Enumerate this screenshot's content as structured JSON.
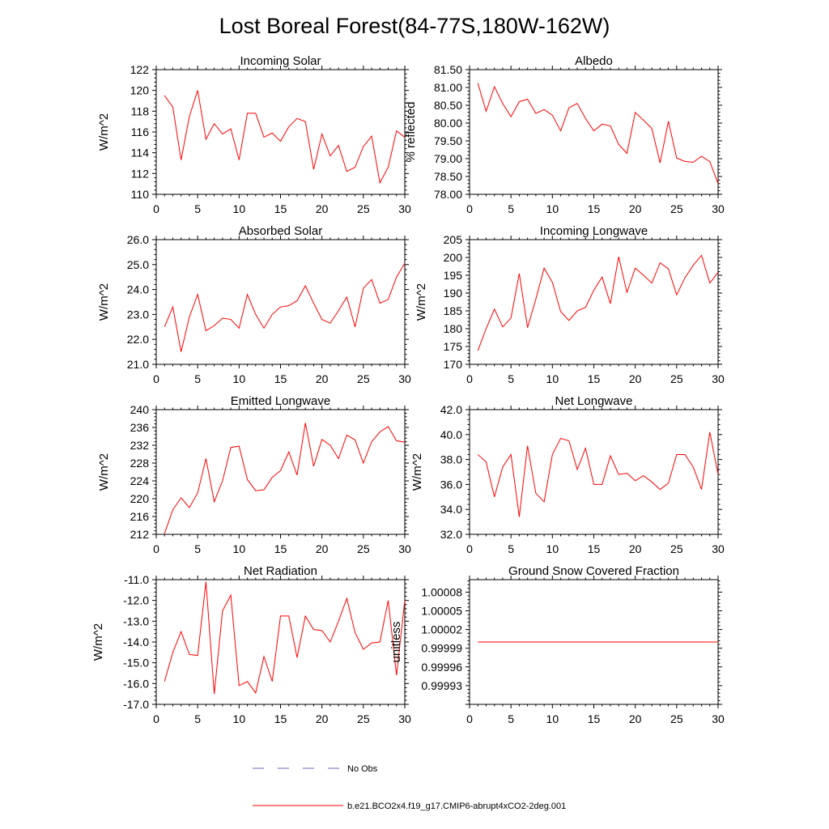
{
  "figure_title": "Lost Boreal Forest(84-77S,180W-162W)",
  "chart_data": [
    {
      "type": "line",
      "title": "Incoming Solar",
      "ylabel": "W/m^2",
      "xlim": [
        0,
        30
      ],
      "ylim": [
        110,
        122
      ],
      "xticks": [
        0,
        5,
        10,
        15,
        20,
        25,
        30
      ],
      "yticks": [
        110,
        112,
        114,
        116,
        118,
        120,
        122
      ],
      "ytick_labels": [
        "110",
        "112",
        "114",
        "116",
        "118",
        "120",
        "122"
      ],
      "series": [
        {
          "name": "b.e21.BCO2x4.f19_g17.CMIP6-abrupt4xCO2-2deg.001",
          "color": "#ff0000",
          "x": [
            1,
            2,
            3,
            4,
            5,
            6,
            7,
            8,
            9,
            10,
            11,
            12,
            13,
            14,
            15,
            16,
            17,
            18,
            19,
            20,
            21,
            22,
            23,
            24,
            25,
            26,
            27,
            28,
            29,
            30
          ],
          "values": [
            119.5,
            118.4,
            113.3,
            117.5,
            120.0,
            115.3,
            116.8,
            115.8,
            116.3,
            113.3,
            117.8,
            117.8,
            115.5,
            115.9,
            115.1,
            116.5,
            117.3,
            117.0,
            112.4,
            115.8,
            113.7,
            114.7,
            112.2,
            112.6,
            114.6,
            115.6,
            111.1,
            112.6,
            116.1,
            115.5
          ]
        }
      ]
    },
    {
      "type": "line",
      "title": "Albedo",
      "ylabel": "% reflected",
      "xlim": [
        0,
        30
      ],
      "ylim": [
        78.0,
        81.5
      ],
      "xticks": [
        0,
        5,
        10,
        15,
        20,
        25,
        30
      ],
      "yticks": [
        78.0,
        78.5,
        79.0,
        79.5,
        80.0,
        80.5,
        81.0,
        81.5
      ],
      "ytick_labels": [
        "78.00",
        "78.50",
        "79.00",
        "79.50",
        "80.00",
        "80.50",
        "81.00",
        "81.50"
      ],
      "series": [
        {
          "name": "b.e21.BCO2x4.f19_g17.CMIP6-abrupt4xCO2-2deg.001",
          "color": "#ff0000",
          "x": [
            1,
            2,
            3,
            4,
            5,
            6,
            7,
            8,
            9,
            10,
            11,
            12,
            13,
            14,
            15,
            16,
            17,
            18,
            19,
            20,
            21,
            22,
            23,
            24,
            25,
            26,
            27,
            28,
            29,
            30
          ],
          "values": [
            81.12,
            80.33,
            81.02,
            80.55,
            80.18,
            80.6,
            80.67,
            80.27,
            80.38,
            80.22,
            79.78,
            80.43,
            80.55,
            80.13,
            79.78,
            79.97,
            79.92,
            79.4,
            79.15,
            80.3,
            80.08,
            79.85,
            78.88,
            80.05,
            79.02,
            78.92,
            78.9,
            79.07,
            78.92,
            78.3
          ]
        }
      ]
    },
    {
      "type": "line",
      "title": "Absorbed Solar",
      "ylabel": "W/m^2",
      "xlim": [
        0,
        30
      ],
      "ylim": [
        21.0,
        26.0
      ],
      "xticks": [
        0,
        5,
        10,
        15,
        20,
        25,
        30
      ],
      "yticks": [
        21.0,
        22.0,
        23.0,
        24.0,
        25.0,
        26.0
      ],
      "ytick_labels": [
        "21.0",
        "22.0",
        "23.0",
        "24.0",
        "25.0",
        "26.0"
      ],
      "series": [
        {
          "name": "b.e21.BCO2x4.f19_g17.CMIP6-abrupt4xCO2-2deg.001",
          "color": "#ff0000",
          "x": [
            1,
            2,
            3,
            4,
            5,
            6,
            7,
            8,
            9,
            10,
            11,
            12,
            13,
            14,
            15,
            16,
            17,
            18,
            19,
            20,
            21,
            22,
            23,
            24,
            25,
            26,
            27,
            28,
            29,
            30
          ],
          "values": [
            22.5,
            23.3,
            21.5,
            22.9,
            23.8,
            22.35,
            22.55,
            22.85,
            22.8,
            22.45,
            23.8,
            23.0,
            22.45,
            23.0,
            23.3,
            23.35,
            23.55,
            24.15,
            23.45,
            22.8,
            22.65,
            23.15,
            23.7,
            22.5,
            24.05,
            24.4,
            23.45,
            23.6,
            24.5,
            25.05
          ]
        }
      ]
    },
    {
      "type": "line",
      "title": "Incoming Longwave",
      "ylabel": "W/m^2",
      "xlim": [
        0,
        30
      ],
      "ylim": [
        170,
        205
      ],
      "xticks": [
        0,
        5,
        10,
        15,
        20,
        25,
        30
      ],
      "yticks": [
        170,
        175,
        180,
        185,
        190,
        195,
        200,
        205
      ],
      "ytick_labels": [
        "170",
        "175",
        "180",
        "185",
        "190",
        "195",
        "200",
        "205"
      ],
      "series": [
        {
          "name": "b.e21.BCO2x4.f19_g17.CMIP6-abrupt4xCO2-2deg.001",
          "color": "#ff0000",
          "x": [
            1,
            2,
            3,
            4,
            5,
            6,
            7,
            8,
            9,
            10,
            11,
            12,
            13,
            14,
            15,
            16,
            17,
            18,
            19,
            20,
            21,
            22,
            23,
            24,
            25,
            26,
            27,
            28,
            29,
            30
          ],
          "values": [
            173.8,
            180.0,
            185.5,
            180.5,
            183.0,
            195.5,
            180.3,
            188.3,
            197.0,
            193.0,
            184.8,
            182.3,
            185.0,
            186.0,
            190.8,
            194.5,
            187.0,
            200.2,
            190.2,
            197.0,
            195.0,
            192.8,
            198.5,
            196.8,
            189.5,
            194.3,
            197.8,
            200.6,
            192.8,
            195.8
          ]
        }
      ]
    },
    {
      "type": "line",
      "title": "Emitted Longwave",
      "ylabel": "W/m^2",
      "xlim": [
        0,
        30
      ],
      "ylim": [
        212,
        240
      ],
      "xticks": [
        0,
        5,
        10,
        15,
        20,
        25,
        30
      ],
      "yticks": [
        212,
        216,
        220,
        224,
        228,
        232,
        236,
        240
      ],
      "ytick_labels": [
        "212",
        "216",
        "220",
        "224",
        "228",
        "232",
        "236",
        "240"
      ],
      "series": [
        {
          "name": "b.e21.BCO2x4.f19_g17.CMIP6-abrupt4xCO2-2deg.001",
          "color": "#ff0000",
          "x": [
            1,
            2,
            3,
            4,
            5,
            6,
            7,
            8,
            9,
            10,
            11,
            12,
            13,
            14,
            15,
            16,
            17,
            18,
            19,
            20,
            21,
            22,
            23,
            24,
            25,
            26,
            27,
            28,
            29,
            30
          ],
          "values": [
            212.2,
            217.5,
            220.2,
            218.0,
            221.3,
            229.0,
            219.3,
            224.0,
            231.5,
            231.8,
            224.3,
            221.8,
            222.0,
            224.8,
            226.3,
            230.5,
            225.3,
            237.0,
            227.3,
            233.3,
            232.0,
            229.0,
            234.3,
            233.2,
            228.0,
            232.8,
            235.0,
            236.2,
            233.0,
            232.7
          ]
        }
      ]
    },
    {
      "type": "line",
      "title": "Net Longwave",
      "ylabel": "W/m^2",
      "xlim": [
        0,
        30
      ],
      "ylim": [
        32.0,
        42.0
      ],
      "xticks": [
        0,
        5,
        10,
        15,
        20,
        25,
        30
      ],
      "yticks": [
        32.0,
        34.0,
        36.0,
        38.0,
        40.0,
        42.0
      ],
      "ytick_labels": [
        "32.0",
        "34.0",
        "36.0",
        "38.0",
        "40.0",
        "42.0"
      ],
      "series": [
        {
          "name": "b.e21.BCO2x4.f19_g17.CMIP6-abrupt4xCO2-2deg.001",
          "color": "#ff0000",
          "x": [
            1,
            2,
            3,
            4,
            5,
            6,
            7,
            8,
            9,
            10,
            11,
            12,
            13,
            14,
            15,
            16,
            17,
            18,
            19,
            20,
            21,
            22,
            23,
            24,
            25,
            26,
            27,
            28,
            29,
            30
          ],
          "values": [
            38.4,
            37.8,
            35.0,
            37.4,
            38.4,
            33.4,
            39.1,
            35.3,
            34.6,
            38.4,
            39.7,
            39.5,
            37.2,
            38.9,
            36.0,
            36.0,
            38.3,
            36.8,
            36.9,
            36.3,
            36.7,
            36.2,
            35.6,
            36.1,
            38.4,
            38.4,
            37.4,
            35.6,
            40.2,
            36.8
          ]
        }
      ]
    },
    {
      "type": "line",
      "title": "Net Radiation",
      "ylabel": "W/m^2",
      "xlim": [
        0,
        30
      ],
      "ylim": [
        -17.0,
        -11.0
      ],
      "xticks": [
        0,
        5,
        10,
        15,
        20,
        25,
        30
      ],
      "yticks": [
        -17.0,
        -16.0,
        -15.0,
        -14.0,
        -13.0,
        -12.0,
        -11.0
      ],
      "ytick_labels": [
        "-17.0",
        "-16.0",
        "-15.0",
        "-14.0",
        "-13.0",
        "-12.0",
        "-11.0"
      ],
      "series": [
        {
          "name": "b.e21.BCO2x4.f19_g17.CMIP6-abrupt4xCO2-2deg.001",
          "color": "#ff0000",
          "x": [
            1,
            2,
            3,
            4,
            5,
            6,
            7,
            8,
            9,
            10,
            11,
            12,
            13,
            14,
            15,
            16,
            17,
            18,
            19,
            20,
            21,
            22,
            23,
            24,
            25,
            26,
            27,
            28,
            29,
            30
          ],
          "values": [
            -15.9,
            -14.5,
            -13.5,
            -14.6,
            -14.65,
            -11.1,
            -16.5,
            -12.5,
            -11.75,
            -16.1,
            -15.9,
            -16.45,
            -14.7,
            -15.9,
            -12.75,
            -12.75,
            -14.75,
            -12.75,
            -13.4,
            -13.45,
            -14.0,
            -13.0,
            -11.9,
            -13.55,
            -14.35,
            -14.05,
            -14.0,
            -12.0,
            -15.6,
            -12.0
          ]
        }
      ]
    },
    {
      "type": "line",
      "title": "Ground Snow Covered Fraction",
      "ylabel": "unitless",
      "xlim": [
        0,
        30
      ],
      "ylim": [
        0.9999,
        1.0001
      ],
      "xticks": [
        0,
        5,
        10,
        15,
        20,
        25,
        30
      ],
      "yticks": [
        0.99993,
        0.99996,
        0.99999,
        1.00002,
        1.00005,
        1.00008
      ],
      "ytick_labels": [
        "0.99993",
        "0.99996",
        "0.99999",
        "1.00002",
        "1.00005",
        "1.00008"
      ],
      "series": [
        {
          "name": "b.e21.BCO2x4.f19_g17.CMIP6-abrupt4xCO2-2deg.001",
          "color": "#ff0000",
          "x": [
            1,
            2,
            3,
            4,
            5,
            6,
            7,
            8,
            9,
            10,
            11,
            12,
            13,
            14,
            15,
            16,
            17,
            18,
            19,
            20,
            21,
            22,
            23,
            24,
            25,
            26,
            27,
            28,
            29,
            30
          ],
          "values": [
            1,
            1,
            1,
            1,
            1,
            1,
            1,
            1,
            1,
            1,
            1,
            1,
            1,
            1,
            1,
            1,
            1,
            1,
            1,
            1,
            1,
            1,
            1,
            1,
            1,
            1,
            1,
            1,
            1,
            1
          ]
        }
      ]
    }
  ],
  "legend": {
    "placement": "bottom-center",
    "entries": [
      {
        "label": "No Obs",
        "style": "dashed",
        "color": "#6666bb"
      },
      {
        "label": "b.e21.BCO2x4.f19_g17.CMIP6-abrupt4xCO2-2deg.001",
        "style": "solid",
        "color": "#ff0000"
      }
    ]
  }
}
